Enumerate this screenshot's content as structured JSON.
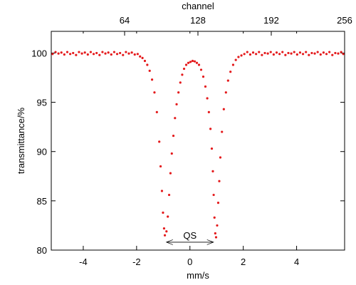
{
  "chart_data": {
    "type": "scatter",
    "xlabel": "mm/s",
    "ylabel": "transmittance/%",
    "x2label": "channel",
    "xlim": [
      -5.2,
      5.8
    ],
    "ylim": [
      80,
      102.2
    ],
    "xticks": [
      -4,
      -2,
      0,
      2,
      4
    ],
    "xtick_labels": [
      "-4",
      "-2",
      "0",
      "2",
      "4"
    ],
    "yticks": [
      80,
      85,
      90,
      95,
      100
    ],
    "ytick_labels": [
      "80",
      "85",
      "90",
      "95",
      "100"
    ],
    "x2ticks": [
      64,
      128,
      192,
      256
    ],
    "x2tick_labels": [
      "64",
      "128",
      "192",
      "256"
    ],
    "x2_mapping": {
      "channel_at_x_min": 0,
      "channel_at_x_max": 256
    },
    "grid": false,
    "legend": "none",
    "marker_color": "#e41a1c",
    "annotation": {
      "text": "QS",
      "x_start": -0.88,
      "x_end": 0.88,
      "y": 80.8
    },
    "series": [
      {
        "points": [
          [
            -5.15,
            99.9
          ],
          [
            -5.04,
            100.1
          ],
          [
            -4.93,
            99.95
          ],
          [
            -4.82,
            100.05
          ],
          [
            -4.71,
            99.85
          ],
          [
            -4.6,
            100.1
          ],
          [
            -4.49,
            99.9
          ],
          [
            -4.38,
            100.0
          ],
          [
            -4.27,
            99.8
          ],
          [
            -4.16,
            100.1
          ],
          [
            -4.05,
            99.95
          ],
          [
            -3.94,
            100.05
          ],
          [
            -3.83,
            99.85
          ],
          [
            -3.72,
            100.1
          ],
          [
            -3.61,
            99.9
          ],
          [
            -3.5,
            100.0
          ],
          [
            -3.39,
            99.8
          ],
          [
            -3.28,
            100.1
          ],
          [
            -3.17,
            99.95
          ],
          [
            -3.06,
            100.05
          ],
          [
            -2.95,
            99.85
          ],
          [
            -2.84,
            100.1
          ],
          [
            -2.73,
            99.9
          ],
          [
            -2.62,
            100.0
          ],
          [
            -2.51,
            99.8
          ],
          [
            -2.4,
            100.1
          ],
          [
            -2.29,
            99.95
          ],
          [
            -2.18,
            100.05
          ],
          [
            -2.07,
            99.85
          ],
          [
            -1.96,
            99.9
          ],
          [
            -1.87,
            99.65
          ],
          [
            -1.78,
            99.5
          ],
          [
            -1.69,
            99.2
          ],
          [
            -1.6,
            98.8
          ],
          [
            -1.51,
            98.2
          ],
          [
            -1.42,
            97.3
          ],
          [
            -1.33,
            96.0
          ],
          [
            -1.24,
            94.0
          ],
          [
            -1.15,
            91.0
          ],
          [
            -1.1,
            88.5
          ],
          [
            -1.05,
            86.0
          ],
          [
            -1.01,
            83.8
          ],
          [
            -0.97,
            82.2
          ],
          [
            -0.94,
            81.5
          ],
          [
            -0.88,
            81.9
          ],
          [
            -0.83,
            83.4
          ],
          [
            -0.78,
            85.6
          ],
          [
            -0.73,
            87.8
          ],
          [
            -0.68,
            89.8
          ],
          [
            -0.62,
            91.6
          ],
          [
            -0.56,
            93.4
          ],
          [
            -0.5,
            94.8
          ],
          [
            -0.43,
            96.0
          ],
          [
            -0.36,
            97.0
          ],
          [
            -0.29,
            97.8
          ],
          [
            -0.22,
            98.4
          ],
          [
            -0.14,
            98.8
          ],
          [
            -0.06,
            99.0
          ],
          [
            0.02,
            99.1
          ],
          [
            0.1,
            99.2
          ],
          [
            0.18,
            99.15
          ],
          [
            0.26,
            99.0
          ],
          [
            0.34,
            98.8
          ],
          [
            0.42,
            98.3
          ],
          [
            0.5,
            97.6
          ],
          [
            0.58,
            96.6
          ],
          [
            0.65,
            95.4
          ],
          [
            0.71,
            94.0
          ],
          [
            0.77,
            92.3
          ],
          [
            0.82,
            90.3
          ],
          [
            0.86,
            88.0
          ],
          [
            0.89,
            85.6
          ],
          [
            0.92,
            83.3
          ],
          [
            0.95,
            81.7
          ],
          [
            0.98,
            81.3
          ],
          [
            1.02,
            82.5
          ],
          [
            1.06,
            84.8
          ],
          [
            1.1,
            87.0
          ],
          [
            1.14,
            89.4
          ],
          [
            1.2,
            92.0
          ],
          [
            1.27,
            94.3
          ],
          [
            1.35,
            96.0
          ],
          [
            1.43,
            97.2
          ],
          [
            1.52,
            98.1
          ],
          [
            1.62,
            98.8
          ],
          [
            1.72,
            99.3
          ],
          [
            1.82,
            99.6
          ],
          [
            1.93,
            99.75
          ],
          [
            2.04,
            99.9
          ],
          [
            2.15,
            100.1
          ],
          [
            2.26,
            99.85
          ],
          [
            2.37,
            100.05
          ],
          [
            2.48,
            99.9
          ],
          [
            2.59,
            100.1
          ],
          [
            2.7,
            99.8
          ],
          [
            2.81,
            100.0
          ],
          [
            2.92,
            99.95
          ],
          [
            3.03,
            100.1
          ],
          [
            3.14,
            99.85
          ],
          [
            3.25,
            100.05
          ],
          [
            3.36,
            99.9
          ],
          [
            3.47,
            100.1
          ],
          [
            3.58,
            99.8
          ],
          [
            3.69,
            100.0
          ],
          [
            3.8,
            99.95
          ],
          [
            3.91,
            100.1
          ],
          [
            4.02,
            99.85
          ],
          [
            4.13,
            100.05
          ],
          [
            4.24,
            99.9
          ],
          [
            4.35,
            100.1
          ],
          [
            4.46,
            99.8
          ],
          [
            4.57,
            100.0
          ],
          [
            4.68,
            99.95
          ],
          [
            4.79,
            100.1
          ],
          [
            4.9,
            99.85
          ],
          [
            5.01,
            100.05
          ],
          [
            5.12,
            99.9
          ],
          [
            5.23,
            100.1
          ],
          [
            5.34,
            99.8
          ],
          [
            5.45,
            100.0
          ],
          [
            5.56,
            99.95
          ],
          [
            5.67,
            100.1
          ],
          [
            5.75,
            99.9
          ]
        ]
      }
    ]
  }
}
